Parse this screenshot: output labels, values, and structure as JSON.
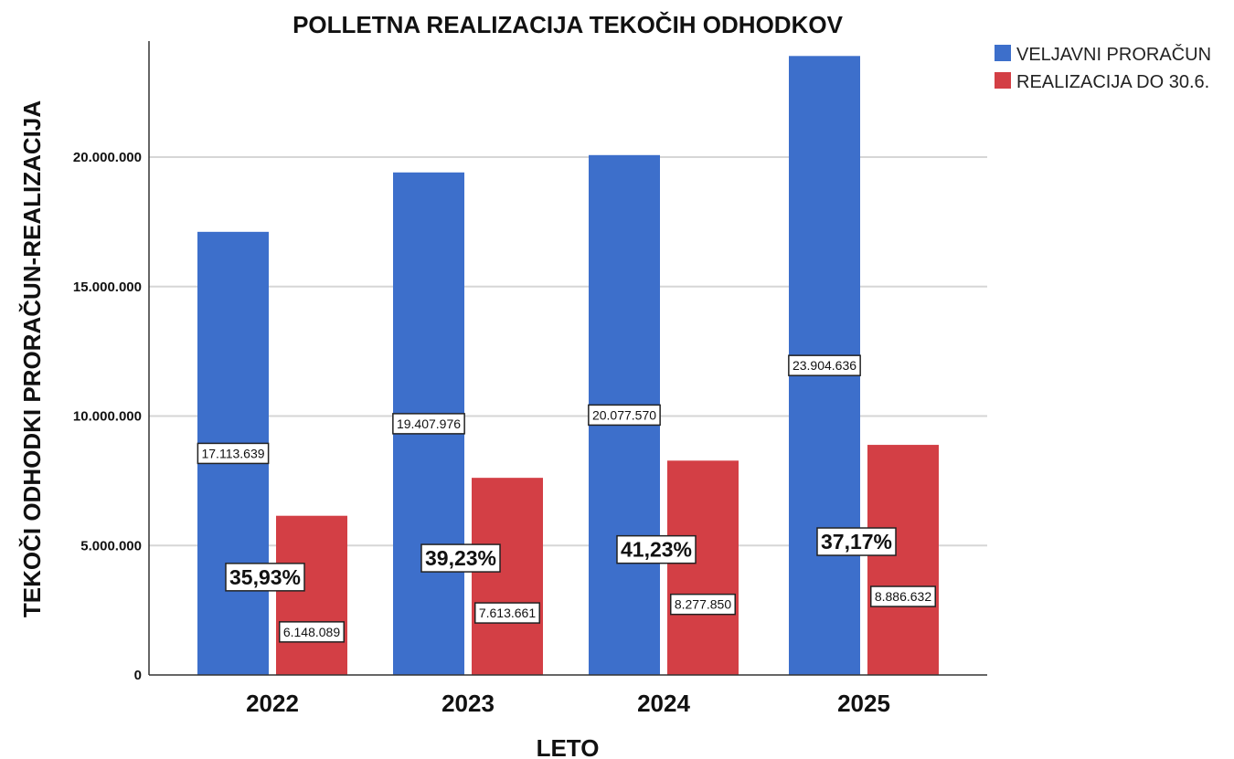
{
  "chart_data": {
    "type": "bar",
    "title": "POLLETNA REALIZACIJA TEKOČIH ODHODKOV",
    "xlabel": "LETO",
    "ylabel": "TEKOČI ODHODKI PRORAČUN-REALIZACIJA",
    "categories": [
      "2022",
      "2023",
      "2024",
      "2025"
    ],
    "ylim": [
      0,
      25000000
    ],
    "yticks": [
      0,
      5000000,
      10000000,
      15000000,
      20000000
    ],
    "ytick_labels": [
      "0",
      "5.000.000",
      "10.000.000",
      "15.000.000",
      "20.000.000"
    ],
    "grid": true,
    "legend_position": "top-right",
    "series": [
      {
        "name": "VELJAVNI PRORAČUN",
        "color": "#3d6fcb",
        "values": [
          17113639,
          19407976,
          20077570,
          23904636
        ],
        "labels": [
          "17.113.639",
          "19.407.976",
          "20.077.570",
          "23.904.636"
        ]
      },
      {
        "name": "REALIZACIJA DO 30.6.",
        "color": "#d33f45",
        "values": [
          6148089,
          7613661,
          8277850,
          8886632
        ],
        "labels": [
          "6.148.089",
          "7.613.661",
          "8.277.850",
          "8.886.632"
        ]
      }
    ],
    "annotations": {
      "percent_labels": [
        "35,93%",
        "39,23%",
        "41,23%",
        "37,17%"
      ]
    }
  }
}
